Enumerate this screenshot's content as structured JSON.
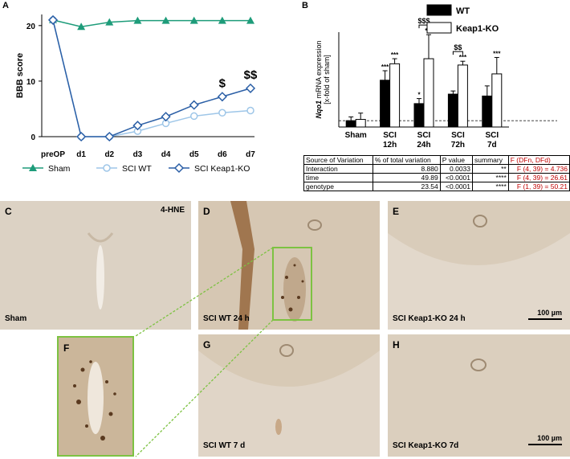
{
  "panel_labels": {
    "A": "A",
    "B": "B",
    "C": "C",
    "D": "D",
    "E": "E",
    "F": "F",
    "G": "G",
    "H": "H"
  },
  "chart_data": [
    {
      "type": "line",
      "ylabel": "BBB score",
      "xlabel": "",
      "categories": [
        "preOP",
        "d1",
        "d2",
        "d3",
        "d4",
        "d5",
        "d6",
        "d7"
      ],
      "ylim": [
        0,
        22
      ],
      "yticks": [
        0,
        10,
        20
      ],
      "series": [
        {
          "name": "Sham",
          "color": "#1e9c7a",
          "marker": "triangle",
          "values": [
            21,
            19.8,
            20.6,
            20.9,
            20.9,
            20.9,
            20.9,
            20.9
          ]
        },
        {
          "name": "SCI WT",
          "color": "#9ec6e8",
          "marker": "circle",
          "values": [
            21,
            0,
            0,
            1.0,
            2.4,
            3.7,
            4.3,
            4.7
          ]
        },
        {
          "name": "SCI Keap1-KO",
          "color": "#2b5fa6",
          "marker": "diamond",
          "values": [
            21,
            0,
            0,
            2.0,
            3.6,
            5.7,
            7.2,
            8.7
          ]
        }
      ],
      "annotations": [
        {
          "category": "d6",
          "text": "$"
        },
        {
          "category": "d7",
          "text": "$$"
        }
      ],
      "legend": {
        "position": "bottom",
        "items": [
          "Sham",
          "SCI WT",
          "SCI Keap1-KO"
        ]
      }
    },
    {
      "type": "bar",
      "ylabel": "Nqo1 mRNA expression [x-fold of sham]",
      "ylabel_italic": "Nqo1",
      "ylabel_rest": " mRNA expression",
      "ylabel_line2": "[x-fold of sham]",
      "categories": [
        "Sham",
        "SCI 12h",
        "SCI 24h",
        "SCI 72h",
        "SCI 7d"
      ],
      "category_lines": [
        [
          "Sham"
        ],
        [
          "SCI",
          "12h"
        ],
        [
          "SCI",
          "24h"
        ],
        [
          "SCI",
          "72h"
        ],
        [
          "SCI",
          "7d"
        ]
      ],
      "ylim": [
        0,
        15
      ],
      "baseline": 1,
      "series": [
        {
          "name": "WT",
          "color": "#000000",
          "values": [
            1.0,
            7.4,
            3.7,
            5.2,
            4.9
          ],
          "errors": [
            0.6,
            1.5,
            0.8,
            0.5,
            1.6
          ],
          "stars": [
            "",
            "***",
            "*",
            "",
            ""
          ]
        },
        {
          "name": "Keap1-KO",
          "color": "#ffffff",
          "values": [
            1.2,
            10.0,
            10.8,
            9.8,
            8.4
          ],
          "errors": [
            1.0,
            0.8,
            3.8,
            0.6,
            2.6
          ],
          "stars": [
            "",
            "***",
            "***",
            "***",
            "***"
          ]
        }
      ],
      "brackets": [
        {
          "category": "SCI 24h",
          "text": "$$$"
        },
        {
          "category": "SCI 72h",
          "text": "$$"
        }
      ],
      "legend": {
        "position": "top-right",
        "items": [
          "WT",
          "Keap1-KO"
        ]
      }
    }
  ],
  "stat_table": {
    "header": [
      "Source of Variation",
      "% of total variation",
      "P value",
      "summary",
      "F (DFn, DFd)"
    ],
    "rows": [
      [
        "Interaction",
        "8.880",
        "0.0033",
        "**",
        "F (4, 39) = 4.736"
      ],
      [
        "time",
        "49.89",
        "<0.0001",
        "****",
        "F (4, 39) = 26.61"
      ],
      [
        "genotype",
        "23.54",
        "<0.0001",
        "****",
        "F (1, 39) = 50.21"
      ]
    ]
  },
  "micrographs": {
    "C": {
      "label": "Sham",
      "stain": "4-HNE"
    },
    "D": {
      "label": "SCI WT 24 h"
    },
    "E": {
      "label": "SCI Keap1-KO 24 h",
      "scale": "100 µm"
    },
    "F": {
      "label": ""
    },
    "G": {
      "label": "SCI WT 7 d"
    },
    "H": {
      "label": "SCI Keap1-KO 7d",
      "scale": "100 µm"
    }
  },
  "colors": {
    "zoom_box": "#7dc242",
    "tissue": "#d9cbb8",
    "tissue_dark": "#c9b8a2"
  }
}
